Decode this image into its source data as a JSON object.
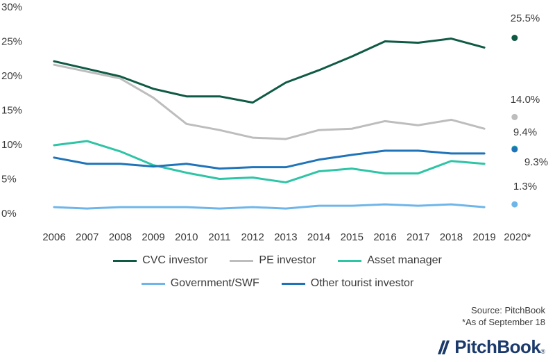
{
  "chart_data": {
    "type": "line",
    "categories": [
      "2006",
      "2007",
      "2008",
      "2009",
      "2010",
      "2011",
      "2012",
      "2013",
      "2014",
      "2015",
      "2016",
      "2017",
      "2018",
      "2019",
      "2020*"
    ],
    "ylim": [
      0,
      30
    ],
    "yticks": [
      "0%",
      "5%",
      "10%",
      "15%",
      "20%",
      "25%",
      "30%"
    ],
    "grid": false,
    "legend_position": "bottom",
    "series": [
      {
        "name": "CVC investor",
        "color": "#0f5a45",
        "values": [
          22.1,
          21.0,
          19.9,
          18.1,
          17.0,
          17.0,
          16.1,
          19.0,
          20.8,
          22.8,
          25.0,
          24.8,
          25.4,
          24.1,
          null
        ],
        "point_2020": 25.5,
        "label_2020": "25.5%"
      },
      {
        "name": "PE investor",
        "color": "#bdbdbd",
        "values": [
          21.6,
          20.6,
          19.6,
          16.8,
          13.0,
          12.1,
          11.0,
          10.8,
          12.1,
          12.3,
          13.4,
          12.8,
          13.6,
          12.3,
          null
        ],
        "point_2020": 14.0,
        "label_2020": "14.0%"
      },
      {
        "name": "Asset manager",
        "color": "#2ec4a6",
        "values": [
          9.9,
          10.5,
          9.0,
          7.0,
          5.9,
          5.0,
          5.2,
          4.5,
          6.1,
          6.5,
          5.8,
          5.8,
          7.6,
          7.2,
          null
        ],
        "point_2020": 9.4,
        "label_2020": "9.4%"
      },
      {
        "name": "Government/SWF",
        "color": "#6eb6ea",
        "values": [
          0.9,
          0.7,
          0.9,
          0.9,
          0.9,
          0.7,
          0.9,
          0.7,
          1.1,
          1.1,
          1.3,
          1.1,
          1.3,
          0.9,
          null
        ],
        "point_2020": 1.3,
        "label_2020": "1.3%"
      },
      {
        "name": "Other tourist investor",
        "color": "#1f74b9",
        "values": [
          8.1,
          7.2,
          7.2,
          6.8,
          7.2,
          6.5,
          6.7,
          6.7,
          7.8,
          8.5,
          9.1,
          9.1,
          8.7,
          8.7,
          null
        ],
        "point_2020": 9.3,
        "label_2020": "9.3%"
      }
    ]
  },
  "source_line": "Source: PitchBook",
  "note_line": "*As of September 18",
  "logo_text": "PitchBook",
  "logo_mark": "®"
}
